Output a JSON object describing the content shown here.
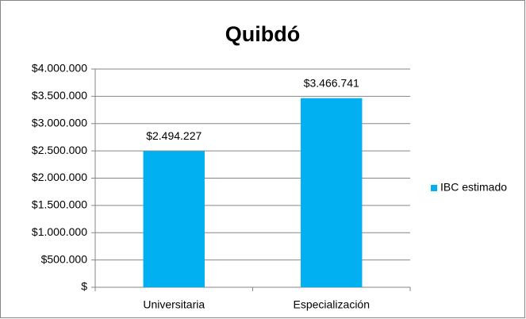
{
  "chart_data": {
    "type": "bar",
    "title": "Quibdó",
    "categories": [
      "Universitaria",
      "Especialización"
    ],
    "series": [
      {
        "name": "IBC estimado",
        "color": "#00b0f0",
        "values": [
          2494227,
          3466741
        ],
        "value_labels": [
          "$2.494.227",
          "$3.466.741"
        ]
      }
    ],
    "ylim": [
      0,
      4000000
    ],
    "yticks": [
      {
        "value": 0,
        "label": "$"
      },
      {
        "value": 500000,
        "label": "$500.000"
      },
      {
        "value": 1000000,
        "label": "$1.000.000"
      },
      {
        "value": 1500000,
        "label": "$1.500.000"
      },
      {
        "value": 2000000,
        "label": "$2.000.000"
      },
      {
        "value": 2500000,
        "label": "$2.500.000"
      },
      {
        "value": 3000000,
        "label": "$3.000.000"
      },
      {
        "value": 3500000,
        "label": "$3.500.000"
      },
      {
        "value": 4000000,
        "label": "$4.000.000"
      }
    ],
    "grid": true,
    "legend": "right"
  }
}
